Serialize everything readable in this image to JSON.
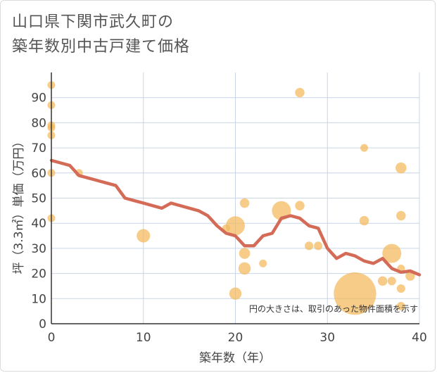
{
  "chart_data": {
    "type": "scatter",
    "title_line1": "山口県下関市武久町の",
    "title_line2": "築年数別中古戸建て価格",
    "xlabel": "築年数（年）",
    "ylabel": "坪（3.3㎡）単価（万円）",
    "xlim": [
      0,
      40
    ],
    "ylim": [
      0,
      100
    ],
    "x_ticks": [
      0,
      10,
      20,
      30,
      40
    ],
    "y_ticks": [
      0,
      10,
      20,
      30,
      40,
      50,
      60,
      70,
      80,
      90
    ],
    "grid": true,
    "note": "円の大きさは、取引のあった物件面積を示す",
    "colors": {
      "bubble": "#f2b95a",
      "line": "#d46b57",
      "grid": "#c8d6e5"
    },
    "points": [
      {
        "x": 0,
        "y": 95,
        "size": 1
      },
      {
        "x": 0,
        "y": 87,
        "size": 1
      },
      {
        "x": 0,
        "y": 79,
        "size": 1
      },
      {
        "x": 0,
        "y": 78,
        "size": 1
      },
      {
        "x": 0,
        "y": 75,
        "size": 1
      },
      {
        "x": 0,
        "y": 60,
        "size": 1
      },
      {
        "x": 0,
        "y": 42,
        "size": 1
      },
      {
        "x": 3,
        "y": 60,
        "size": 1
      },
      {
        "x": 10,
        "y": 35,
        "size": 3
      },
      {
        "x": 19,
        "y": 38,
        "size": 1
      },
      {
        "x": 20,
        "y": 39,
        "size": 6
      },
      {
        "x": 20,
        "y": 12,
        "size": 2.5
      },
      {
        "x": 21,
        "y": 48,
        "size": 1.5
      },
      {
        "x": 21,
        "y": 28,
        "size": 2
      },
      {
        "x": 21,
        "y": 22,
        "size": 2.5
      },
      {
        "x": 23,
        "y": 24,
        "size": 1
      },
      {
        "x": 25,
        "y": 45,
        "size": 6
      },
      {
        "x": 27,
        "y": 92,
        "size": 1.5
      },
      {
        "x": 27,
        "y": 47,
        "size": 1.5
      },
      {
        "x": 28,
        "y": 31,
        "size": 1.2
      },
      {
        "x": 29,
        "y": 31,
        "size": 1.2
      },
      {
        "x": 33,
        "y": 12,
        "size": 30
      },
      {
        "x": 34,
        "y": 70,
        "size": 1
      },
      {
        "x": 34,
        "y": 41,
        "size": 1.5
      },
      {
        "x": 36,
        "y": 17,
        "size": 1.5
      },
      {
        "x": 37,
        "y": 28,
        "size": 6
      },
      {
        "x": 37,
        "y": 17,
        "size": 1.2
      },
      {
        "x": 38,
        "y": 62,
        "size": 2
      },
      {
        "x": 38,
        "y": 43,
        "size": 1.5
      },
      {
        "x": 38,
        "y": 22,
        "size": 1
      },
      {
        "x": 38,
        "y": 14,
        "size": 1.2
      },
      {
        "x": 38,
        "y": 7,
        "size": 1.2
      },
      {
        "x": 39,
        "y": 19,
        "size": 1.5
      }
    ],
    "trend": {
      "x": [
        0,
        1,
        2,
        3,
        4,
        5,
        6,
        7,
        8,
        9,
        10,
        11,
        12,
        13,
        14,
        15,
        16,
        17,
        18,
        19,
        20,
        21,
        22,
        23,
        24,
        25,
        26,
        27,
        28,
        29,
        30,
        31,
        32,
        33,
        34,
        35,
        36,
        37,
        38,
        39,
        40
      ],
      "y": [
        65,
        64,
        63,
        59,
        58,
        57,
        56,
        55,
        50,
        49,
        48,
        47,
        46,
        48,
        47,
        46,
        45,
        43,
        39,
        36,
        35,
        31,
        31,
        35,
        36,
        42,
        43,
        42,
        39,
        38,
        30,
        26,
        28,
        27,
        25,
        24,
        26,
        22,
        20.5,
        21,
        19.5
      ]
    }
  }
}
